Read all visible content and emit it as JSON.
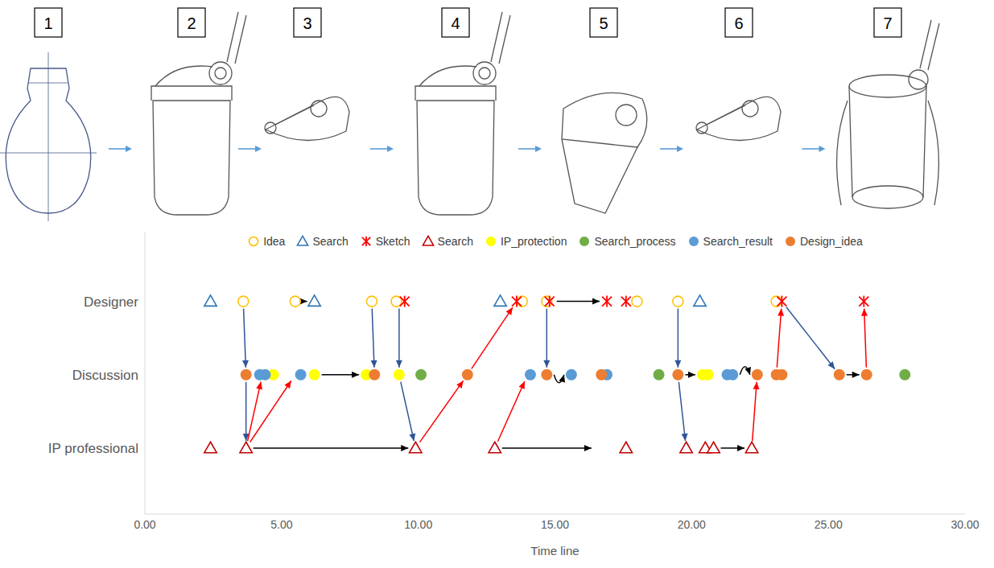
{
  "panels": [
    "1",
    "2",
    "3",
    "4",
    "5",
    "6",
    "7"
  ],
  "chart_data": {
    "type": "scatter",
    "x_label": "Time line",
    "categories": [
      "Designer",
      "Discussion",
      "IP professional"
    ],
    "xlim": [
      0,
      30
    ],
    "xticks": [
      {
        "value": 0,
        "label": "0.00"
      },
      {
        "value": 5,
        "label": "5.00"
      },
      {
        "value": 10,
        "label": "10.00"
      },
      {
        "value": 15,
        "label": "15.00"
      },
      {
        "value": 20,
        "label": "20.00"
      },
      {
        "value": 25,
        "label": "25.00"
      },
      {
        "value": 30,
        "label": "30.00"
      }
    ],
    "legend": "top",
    "series": [
      {
        "name": "Idea",
        "color": "#ffc000",
        "marker": "open_circle",
        "row": "Designer",
        "x": [
          3.6,
          5.5,
          8.3,
          9.2,
          13.8,
          14.7,
          18.0,
          19.5,
          23.1
        ]
      },
      {
        "name": "Search",
        "color": "#2e75b6",
        "marker": "open_triangle",
        "row": "Designer",
        "x": [
          2.4,
          6.2,
          13.0,
          20.3
        ]
      },
      {
        "name": "Sketch",
        "color": "#ff0000",
        "marker": "star",
        "row": "Designer",
        "x": [
          9.5,
          13.6,
          14.8,
          16.9,
          17.6,
          23.3,
          26.3
        ]
      },
      {
        "name": "Search",
        "color": "#c00000",
        "marker": "open_triangle",
        "row": "IP professional",
        "x": [
          2.4,
          3.7,
          9.9,
          12.8,
          17.6,
          19.8,
          20.5,
          20.8,
          22.2
        ]
      },
      {
        "name": "IP_protection",
        "color": "#ffff00",
        "marker": "filled_circle",
        "row": "Discussion",
        "x": [
          4.7,
          6.2,
          8.1,
          9.3,
          20.4,
          20.6
        ]
      },
      {
        "name": "Search_process",
        "color": "#70ad47",
        "marker": "filled_circle",
        "row": "Discussion",
        "x": [
          10.1,
          18.8,
          27.8
        ]
      },
      {
        "name": "Search_result",
        "color": "#5b9bd5",
        "marker": "filled_circle",
        "row": "Discussion",
        "x": [
          4.2,
          4.4,
          5.7,
          14.1,
          15.6,
          16.9,
          21.3,
          21.5
        ]
      },
      {
        "name": "Design_idea",
        "color": "#ed7d31",
        "marker": "filled_circle",
        "row": "Discussion",
        "x": [
          3.7,
          8.4,
          11.8,
          14.7,
          16.7,
          19.5,
          22.4,
          23.1,
          23.3,
          25.4,
          26.4
        ]
      }
    ],
    "arrows": [
      {
        "from": [
          3.6,
          "Designer"
        ],
        "to": [
          3.7,
          "Discussion"
        ],
        "color": "#2f5597"
      },
      {
        "from": [
          3.7,
          "Discussion"
        ],
        "to": [
          3.7,
          "IP professional"
        ],
        "color": "#2f5597"
      },
      {
        "from": [
          8.3,
          "Designer"
        ],
        "to": [
          8.4,
          "Discussion"
        ],
        "color": "#2f5597"
      },
      {
        "from": [
          9.3,
          "Designer"
        ],
        "to": [
          9.3,
          "Discussion"
        ],
        "color": "#2f5597"
      },
      {
        "from": [
          9.3,
          "Discussion"
        ],
        "to": [
          9.9,
          "IP professional"
        ],
        "color": "#2f5597"
      },
      {
        "from": [
          14.7,
          "Designer"
        ],
        "to": [
          14.7,
          "Discussion"
        ],
        "color": "#2f5597"
      },
      {
        "from": [
          19.5,
          "Designer"
        ],
        "to": [
          19.5,
          "Discussion"
        ],
        "color": "#2f5597"
      },
      {
        "from": [
          19.5,
          "Discussion"
        ],
        "to": [
          19.8,
          "IP professional"
        ],
        "color": "#2f5597"
      },
      {
        "from": [
          23.3,
          "Designer"
        ],
        "to": [
          25.4,
          "Discussion"
        ],
        "color": "#2f5597"
      },
      {
        "from": [
          3.7,
          "IP professional"
        ],
        "to": [
          4.3,
          "Discussion"
        ],
        "color": "#ff0000"
      },
      {
        "from": [
          3.7,
          "IP professional"
        ],
        "to": [
          5.5,
          "Discussion"
        ],
        "color": "#ff0000"
      },
      {
        "from": [
          9.9,
          "IP professional"
        ],
        "to": [
          11.8,
          "Discussion"
        ],
        "color": "#ff0000"
      },
      {
        "from": [
          11.8,
          "Discussion"
        ],
        "to": [
          13.6,
          "Designer"
        ],
        "color": "#ff0000"
      },
      {
        "from": [
          12.8,
          "IP professional"
        ],
        "to": [
          14.0,
          "Discussion"
        ],
        "color": "#ff0000"
      },
      {
        "from": [
          22.2,
          "IP professional"
        ],
        "to": [
          22.4,
          "Discussion"
        ],
        "color": "#ff0000"
      },
      {
        "from": [
          23.1,
          "Discussion"
        ],
        "to": [
          23.3,
          "Designer"
        ],
        "color": "#ff0000"
      },
      {
        "from": [
          26.4,
          "Discussion"
        ],
        "to": [
          26.3,
          "Designer"
        ],
        "color": "#ff0000"
      },
      {
        "from": [
          5.5,
          "Designer"
        ],
        "to": [
          6.2,
          "Designer"
        ],
        "color": "#000000"
      },
      {
        "from": [
          14.8,
          "Designer"
        ],
        "to": [
          16.9,
          "Designer"
        ],
        "color": "#000000"
      },
      {
        "from": [
          6.2,
          "Discussion"
        ],
        "to": [
          8.1,
          "Discussion"
        ],
        "color": "#000000"
      },
      {
        "from": [
          14.7,
          "Discussion"
        ],
        "to": [
          15.6,
          "Discussion"
        ],
        "color": "#000000",
        "line_style": "curved_below"
      },
      {
        "from": [
          19.5,
          "Discussion"
        ],
        "to": [
          20.4,
          "Discussion"
        ],
        "color": "#000000"
      },
      {
        "from": [
          21.5,
          "Discussion"
        ],
        "to": [
          22.4,
          "Discussion"
        ],
        "color": "#000000",
        "line_style": "curved_above"
      },
      {
        "from": [
          25.4,
          "Discussion"
        ],
        "to": [
          26.4,
          "Discussion"
        ],
        "color": "#000000"
      },
      {
        "from": [
          3.7,
          "IP professional"
        ],
        "to": [
          9.9,
          "IP professional"
        ],
        "color": "#000000"
      },
      {
        "from": [
          12.8,
          "IP professional"
        ],
        "to": [
          16.6,
          "IP professional"
        ],
        "color": "#000000"
      },
      {
        "from": [
          20.8,
          "IP professional"
        ],
        "to": [
          22.2,
          "IP professional"
        ],
        "color": "#000000"
      }
    ]
  }
}
